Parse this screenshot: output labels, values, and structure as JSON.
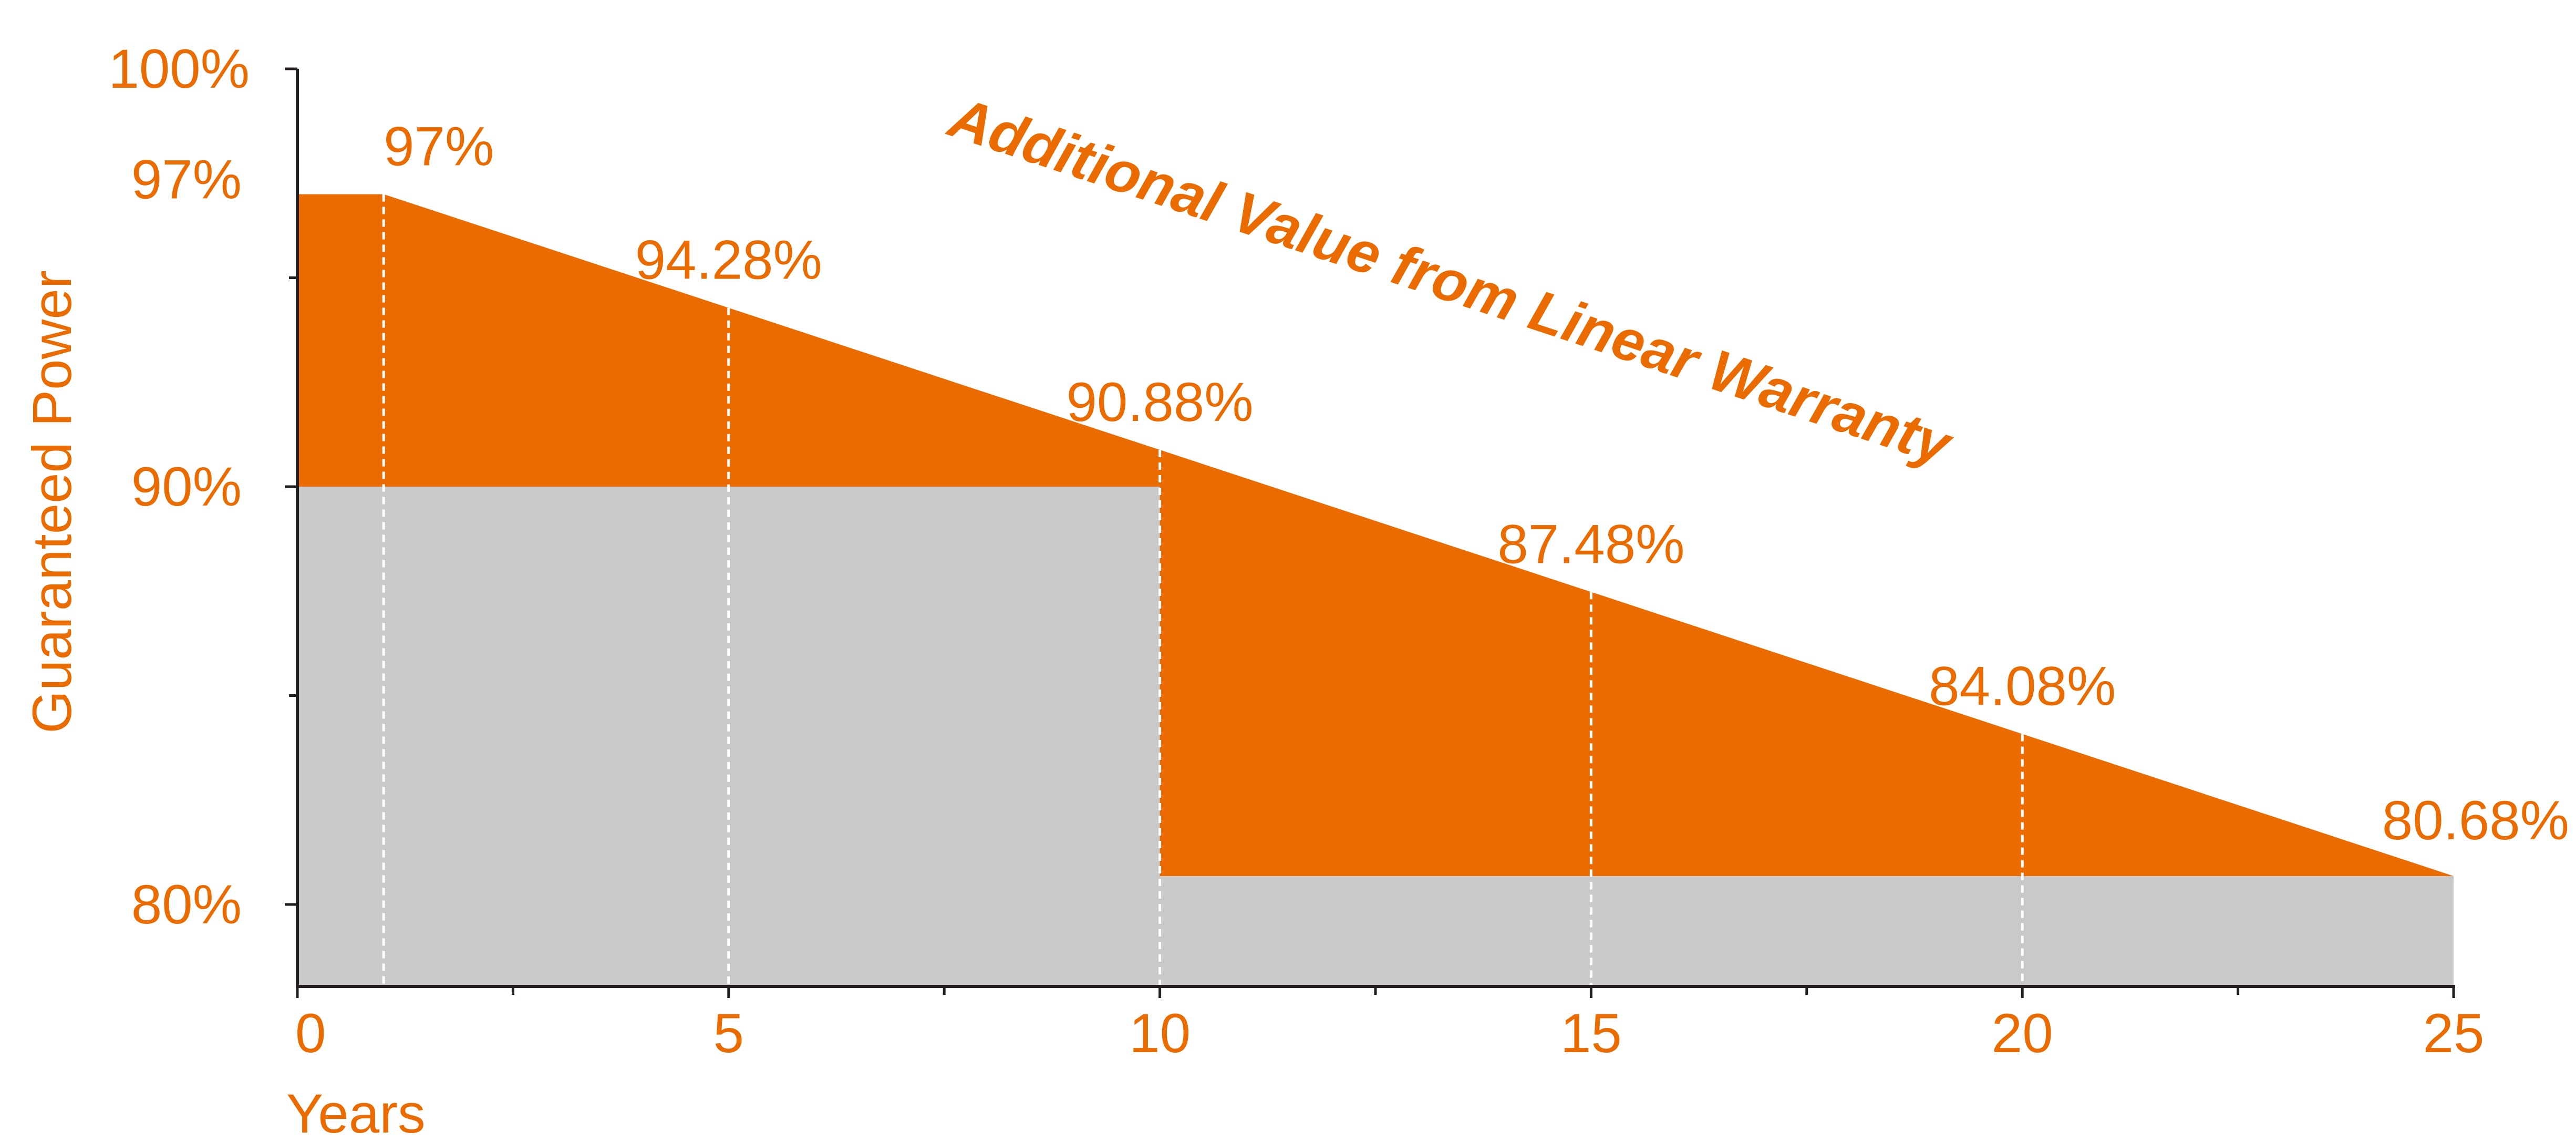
{
  "chart_data": {
    "type": "area",
    "title": "Additional Value from Linear Warranty",
    "xlabel": "Years",
    "ylabel": "Guaranteed Power",
    "xlim": [
      0,
      25
    ],
    "ylim": [
      78,
      100
    ],
    "x_ticks": [
      0,
      5,
      10,
      15,
      20,
      25
    ],
    "x_minor_ticks": [
      2.5,
      7.5,
      12.5,
      17.5,
      22.5
    ],
    "y_ticks": [
      {
        "value": 100,
        "label": "100%"
      },
      {
        "value": 97,
        "label": "97%"
      },
      {
        "value": 90,
        "label": "90%"
      },
      {
        "value": 80,
        "label": "80%"
      }
    ],
    "y_minor_ticks": [
      95,
      85
    ],
    "series": [
      {
        "name": "",
        "kind": "linear-warranty",
        "x": [
          0,
          1,
          5,
          10,
          15,
          20,
          25
        ],
        "y": [
          97,
          97,
          94.28,
          90.88,
          87.48,
          84.08,
          80.68
        ],
        "color": "#EA6C00"
      },
      {
        "name": "",
        "kind": "step-warranty",
        "x": [
          0,
          10,
          10,
          25
        ],
        "y": [
          90,
          90,
          80.68,
          80.68
        ],
        "color": "#C8C9C8"
      }
    ],
    "data_labels": [
      {
        "x": 1,
        "y": 97,
        "label": "97%"
      },
      {
        "x": 5,
        "y": 94.28,
        "label": "94.28%"
      },
      {
        "x": 10,
        "y": 90.88,
        "label": "90.88%"
      },
      {
        "x": 15,
        "y": 87.48,
        "label": "87.48%"
      },
      {
        "x": 20,
        "y": 84.08,
        "label": "84.08%"
      },
      {
        "x": 25,
        "y": 80.68,
        "label": "80.68%"
      }
    ],
    "dashed_lines_at_x": [
      1,
      5,
      10,
      15,
      20
    ],
    "grid": false,
    "colors": {
      "accent": "#EA6C00",
      "fill_gray": "#C8C9C8",
      "axis": "#231F20",
      "dashed_line": "#FFFFFF"
    }
  }
}
